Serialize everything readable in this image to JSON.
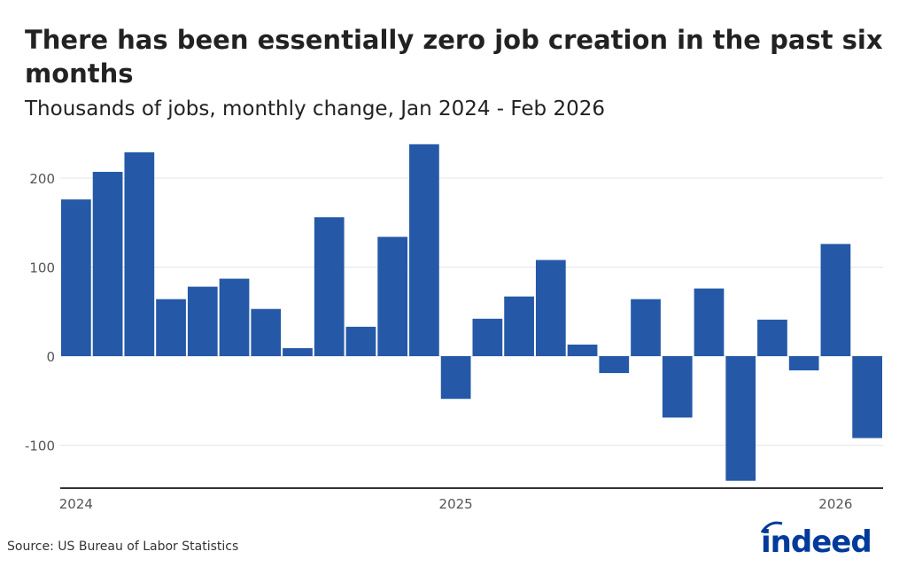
{
  "title": "There has been essentially zero job creation in the past six months",
  "subtitle": "Thousands of jobs, monthly change, Jan 2024 - Feb 2026",
  "source": "Source: US Bureau of Labor Statistics",
  "logo_text": "indeed",
  "colors": {
    "bar": "#2559A7",
    "logo": "#003A9B",
    "grid": "#e6e6e6",
    "axis": "#333333"
  },
  "chart_data": {
    "type": "bar",
    "title": "There has been essentially zero job creation in the past six months",
    "subtitle": "Thousands of jobs, monthly change, Jan 2024 - Feb 2026",
    "xlabel": "",
    "ylabel": "",
    "categories": [
      "2024-01",
      "2024-02",
      "2024-03",
      "2024-04",
      "2024-05",
      "2024-06",
      "2024-07",
      "2024-08",
      "2024-09",
      "2024-10",
      "2024-11",
      "2024-12",
      "2025-01",
      "2025-02",
      "2025-03",
      "2025-04",
      "2025-05",
      "2025-06",
      "2025-07",
      "2025-08",
      "2025-09",
      "2025-10",
      "2025-11",
      "2025-12",
      "2026-01",
      "2026-02"
    ],
    "values": [
      176,
      207,
      229,
      64,
      78,
      87,
      53,
      9,
      156,
      33,
      134,
      238,
      -48,
      42,
      67,
      108,
      13,
      -19,
      64,
      -69,
      76,
      -140,
      41,
      -16,
      126,
      -92
    ],
    "ylim": [
      -148,
      245
    ],
    "yticks": [
      -100,
      0,
      100,
      200
    ],
    "ytick_labels": [
      "-100",
      "0",
      "100",
      "200"
    ],
    "xtick_labels": [
      {
        "index": 0,
        "label": "2024"
      },
      {
        "index": 12,
        "label": "2025"
      },
      {
        "index": 24,
        "label": "2026"
      }
    ],
    "grid": "horizontal"
  }
}
